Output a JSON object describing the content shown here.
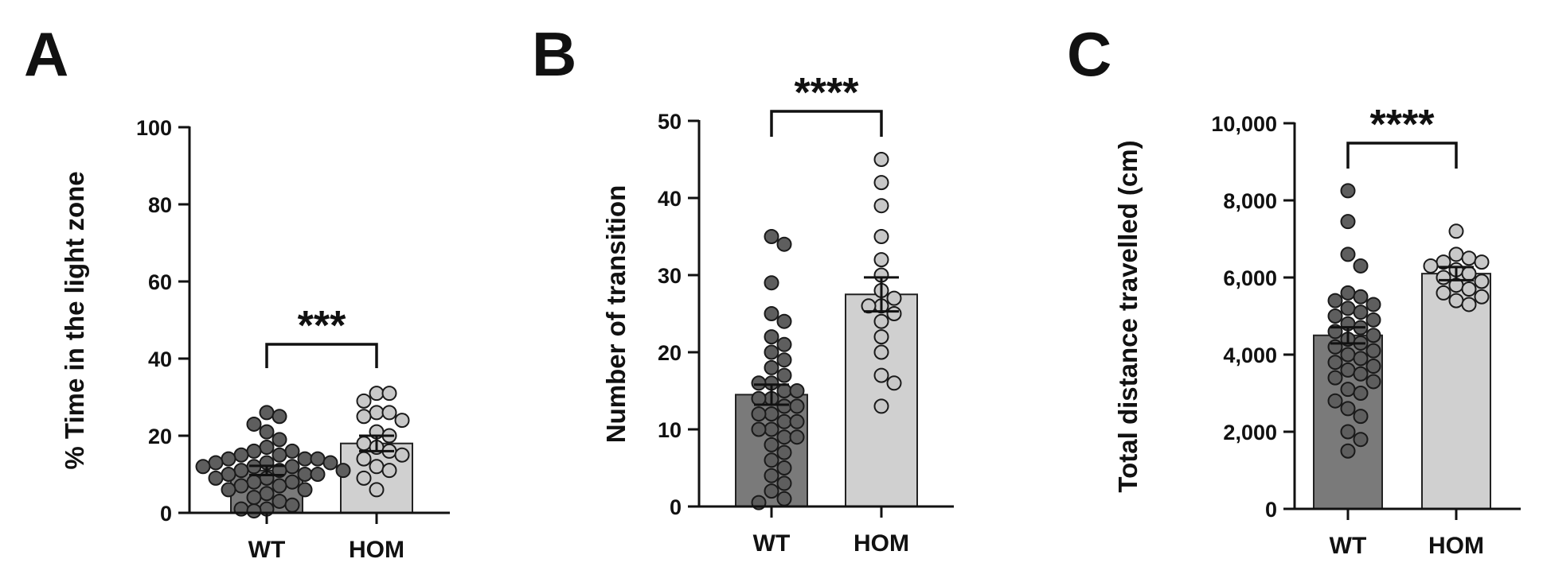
{
  "chart_data": [
    {
      "panel_letter": "A",
      "type": "bar",
      "categories": [
        "WT",
        "HOM"
      ],
      "ylabel": "% Time in the light zone",
      "ylim": [
        0,
        100
      ],
      "yticks": [
        0,
        20,
        40,
        60,
        80,
        100
      ],
      "ytick_labels": [
        "0",
        "20",
        "40",
        "60",
        "80",
        "100"
      ],
      "means": [
        11,
        18
      ],
      "sem": [
        1.2,
        2.0
      ],
      "significance": "***",
      "bar_colors": [
        "#7a7a7a",
        "#d0d0d0"
      ],
      "point_colors": [
        "#5e5e5e",
        "#c8c8c8"
      ],
      "points": [
        [
          26,
          25,
          23,
          21,
          19,
          17,
          16,
          16,
          15,
          15,
          14,
          14,
          14,
          13,
          13,
          13,
          12,
          12,
          12,
          11,
          11,
          11,
          10,
          10,
          10,
          9,
          9,
          8,
          8,
          7,
          7,
          6,
          6,
          5,
          4,
          3,
          2,
          1,
          1,
          0.5
        ],
        [
          31,
          31,
          29,
          26,
          26,
          25,
          24,
          21,
          20,
          18,
          17,
          16,
          15,
          14,
          12,
          11,
          9,
          6
        ]
      ]
    },
    {
      "panel_letter": "B",
      "type": "bar",
      "categories": [
        "WT",
        "HOM"
      ],
      "ylabel": "Number of transition",
      "ylim": [
        0,
        50
      ],
      "yticks": [
        0,
        10,
        20,
        30,
        40,
        50
      ],
      "ytick_labels": [
        "0",
        "10",
        "20",
        "30",
        "40",
        "50"
      ],
      "means": [
        14.5,
        27.5
      ],
      "sem": [
        1.3,
        2.2
      ],
      "significance": "****",
      "bar_colors": [
        "#7a7a7a",
        "#d0d0d0"
      ],
      "point_colors": [
        "#5e5e5e",
        "#c8c8c8"
      ],
      "points": [
        [
          35,
          34,
          29,
          25,
          24,
          22,
          21,
          20,
          19,
          18,
          17,
          16,
          16,
          15,
          15,
          14,
          14,
          13,
          13,
          12,
          12,
          11,
          11,
          10,
          10,
          9,
          9,
          8,
          7,
          6,
          5,
          4,
          3,
          2,
          1,
          0.5
        ],
        [
          45,
          42,
          39,
          35,
          32,
          30,
          28,
          27,
          26,
          26,
          25,
          24,
          22,
          20,
          17,
          16,
          13
        ]
      ]
    },
    {
      "panel_letter": "C",
      "type": "bar",
      "categories": [
        "WT",
        "HOM"
      ],
      "ylabel": "Total distance travelled (cm)",
      "ylim": [
        0,
        10000
      ],
      "yticks": [
        0,
        2000,
        4000,
        6000,
        8000,
        10000
      ],
      "ytick_labels": [
        "0",
        "2,000",
        "4,000",
        "6,000",
        "8,000",
        "10,000"
      ],
      "means": [
        4500,
        6100
      ],
      "sem": [
        210,
        170
      ],
      "significance": "****",
      "bar_colors": [
        "#7a7a7a",
        "#d0d0d0"
      ],
      "point_colors": [
        "#5e5e5e",
        "#c8c8c8"
      ],
      "points": [
        [
          8250,
          7450,
          6600,
          6300,
          5600,
          5500,
          5400,
          5300,
          5200,
          5100,
          5000,
          4900,
          4800,
          4700,
          4600,
          4500,
          4400,
          4300,
          4200,
          4100,
          4000,
          3900,
          3800,
          3700,
          3600,
          3500,
          3400,
          3300,
          3100,
          3000,
          2800,
          2600,
          2400,
          2000,
          1800,
          1500
        ],
        [
          7200,
          6600,
          6500,
          6400,
          6400,
          6300,
          6200,
          6100,
          6000,
          5900,
          5800,
          5700,
          5600,
          5500,
          5400,
          5300
        ]
      ]
    }
  ]
}
